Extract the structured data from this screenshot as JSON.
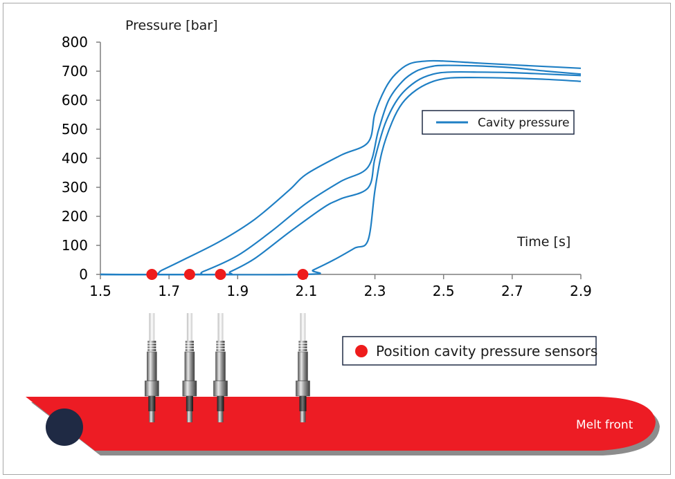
{
  "chart_data": {
    "type": "line",
    "ylabel": "Pressure [bar]",
    "xlabel": "Time [s]",
    "xlim": [
      1.5,
      2.9
    ],
    "ylim": [
      0,
      800
    ],
    "x_ticks": [
      "1.5",
      "1.7",
      "1.9",
      "2.1",
      "2.3",
      "2.5",
      "2.7",
      "2.9"
    ],
    "y_ticks": [
      "800",
      "700",
      "600",
      "500",
      "400",
      "300",
      "200",
      "100",
      "0"
    ],
    "series": [
      {
        "curve": 1,
        "x": [
          1.5,
          1.65,
          1.68,
          1.75,
          1.85,
          1.95,
          2.05,
          2.1,
          2.2,
          2.28,
          2.3,
          2.33,
          2.36,
          2.4,
          2.45,
          2.5,
          2.6,
          2.7,
          2.8,
          2.9
        ],
        "y": [
          0,
          0,
          15,
          55,
          115,
          190,
          290,
          345,
          410,
          455,
          555,
          640,
          690,
          725,
          735,
          735,
          728,
          722,
          716,
          710
        ]
      },
      {
        "curve": 2,
        "x": [
          1.5,
          1.77,
          1.8,
          1.9,
          2.0,
          2.1,
          2.2,
          2.28,
          2.31,
          2.34,
          2.38,
          2.42,
          2.46,
          2.5,
          2.6,
          2.7,
          2.8,
          2.9
        ],
        "y": [
          0,
          0,
          10,
          65,
          150,
          245,
          320,
          370,
          495,
          600,
          665,
          700,
          715,
          720,
          718,
          712,
          700,
          690
        ]
      },
      {
        "curve": 3,
        "x": [
          1.5,
          1.85,
          1.88,
          1.95,
          2.05,
          2.15,
          2.2,
          2.28,
          2.3,
          2.33,
          2.37,
          2.42,
          2.47,
          2.52,
          2.6,
          2.7,
          2.8,
          2.9
        ],
        "y": [
          0,
          0,
          10,
          55,
          145,
          230,
          260,
          298,
          400,
          520,
          610,
          665,
          690,
          697,
          697,
          695,
          690,
          685
        ]
      },
      {
        "curve": 4,
        "x": [
          1.5,
          2.09,
          2.12,
          2.18,
          2.24,
          2.28,
          2.3,
          2.32,
          2.35,
          2.38,
          2.42,
          2.47,
          2.52,
          2.6,
          2.7,
          2.8,
          2.9
        ],
        "y": [
          0,
          0,
          15,
          50,
          90,
          118,
          290,
          420,
          525,
          590,
          635,
          665,
          677,
          678,
          676,
          672,
          665
        ]
      }
    ],
    "sensor_times": [
      1.65,
      1.76,
      1.85,
      2.09
    ],
    "legend": [
      {
        "label": "Cavity pressure",
        "marker": "line"
      },
      {
        "label": "Position cavity pressure sensors",
        "marker": "dot"
      }
    ],
    "annotations": {
      "melt_front": "Melt front"
    }
  },
  "colors": {
    "curve": "#1f7fc4",
    "sensor_dot": "#ee1c1c",
    "melt": "#ed1c24",
    "melt_shadow": "#8c8c8c",
    "melt_dot": "#1f2a44",
    "axis": "#7f7f7f"
  }
}
